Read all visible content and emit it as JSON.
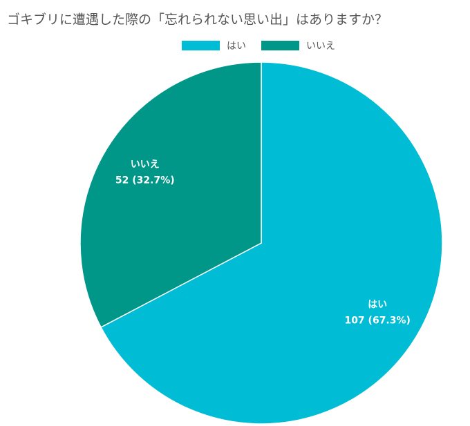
{
  "chart_data": {
    "type": "pie",
    "title": "ゴキブリに遭遇した際の「忘れられない思い出」はありますか？",
    "categories": [
      "はい",
      "いいえ"
    ],
    "values": [
      107,
      52
    ],
    "value_labels": [
      "107 (67.3%)",
      "52 (32.7%)"
    ],
    "colors": [
      "#00bcd4",
      "#009688"
    ],
    "legend": "top"
  }
}
